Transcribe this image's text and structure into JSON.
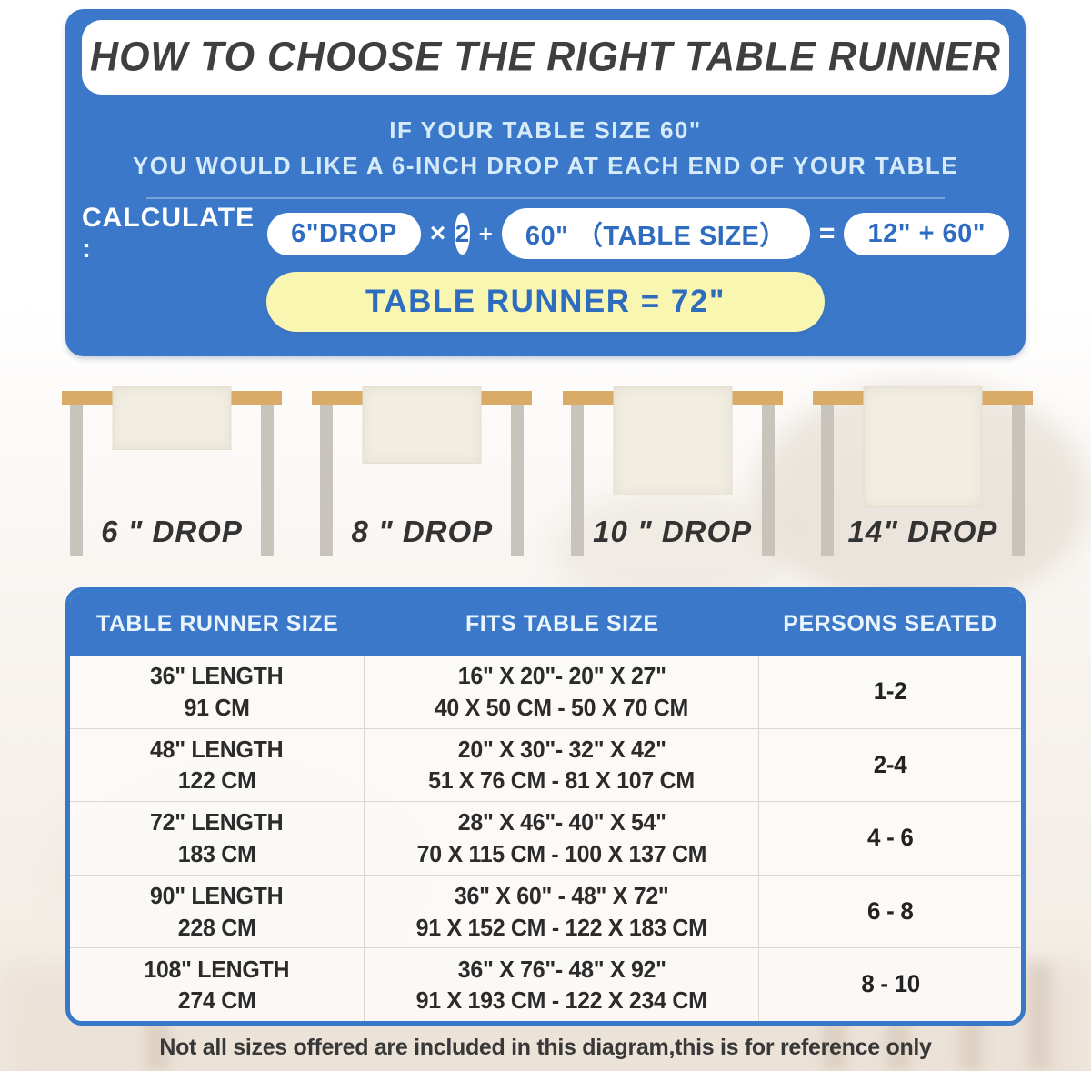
{
  "banner": {
    "title": "HOW TO CHOOSE THE RIGHT TABLE RUNNER",
    "subtitle_line1": "IF YOUR TABLE SIZE 60\"",
    "subtitle_line2": "YOU WOULD LIKE A 6-INCH DROP AT EACH END OF YOUR TABLE",
    "calc": {
      "label": "CALCULATE :",
      "drop_pill": "6\"DROP",
      "times": "×",
      "multiplier": "2",
      "plus": "+",
      "table_size_pill": "60\" （TABLE SIZE）",
      "equals": "=",
      "sum_pill": "12\" + 60\"",
      "result": "TABLE RUNNER = 72\""
    }
  },
  "drop_examples": [
    {
      "label": "6 \" DROP"
    },
    {
      "label": "8 \" DROP"
    },
    {
      "label": "10 \" DROP"
    },
    {
      "label": "14\" DROP"
    }
  ],
  "size_table": {
    "headers": [
      "TABLE RUNNER SIZE",
      "FITS TABLE SIZE",
      "PERSONS SEATED"
    ],
    "rows": [
      {
        "length_in": "36\" LENGTH",
        "length_cm": "91 CM",
        "fits_in": "16\" X 20\"- 20\" X 27\"",
        "fits_cm": "40 X 50 CM - 50 X 70 CM",
        "persons": "1-2"
      },
      {
        "length_in": "48\" LENGTH",
        "length_cm": "122 CM",
        "fits_in": "20\" X 30\"- 32\" X 42\"",
        "fits_cm": "51 X 76 CM - 81 X 107 CM",
        "persons": "2-4"
      },
      {
        "length_in": "72\" LENGTH",
        "length_cm": "183 CM",
        "fits_in": "28\" X 46\"- 40\" X 54\"",
        "fits_cm": "70 X 115 CM - 100 X 137 CM",
        "persons": "4 - 6"
      },
      {
        "length_in": "90\" LENGTH",
        "length_cm": "228 CM",
        "fits_in": "36\" X 60\" - 48\" X 72\"",
        "fits_cm": "91 X 152 CM - 122 X 183 CM",
        "persons": "6 - 8"
      },
      {
        "length_in": "108\" LENGTH",
        "length_cm": "274 CM",
        "fits_in": "36\" X 76\"- 48\" X 92\"",
        "fits_cm": "91 X 193 CM - 122 X 234 CM",
        "persons": "8 - 10"
      }
    ]
  },
  "footer_note": "Not all sizes offered are included in this diagram,this is for reference only",
  "colors": {
    "banner_blue": "#3b78c9",
    "accent_blue_text": "#2e6cc0",
    "result_yellow": "#f9f6b1",
    "tabletop_tan": "#d9ab67",
    "leg_gray": "#c8c4bc",
    "runner_cream": "#f1ede1",
    "title_dark": "#3f3e41"
  }
}
